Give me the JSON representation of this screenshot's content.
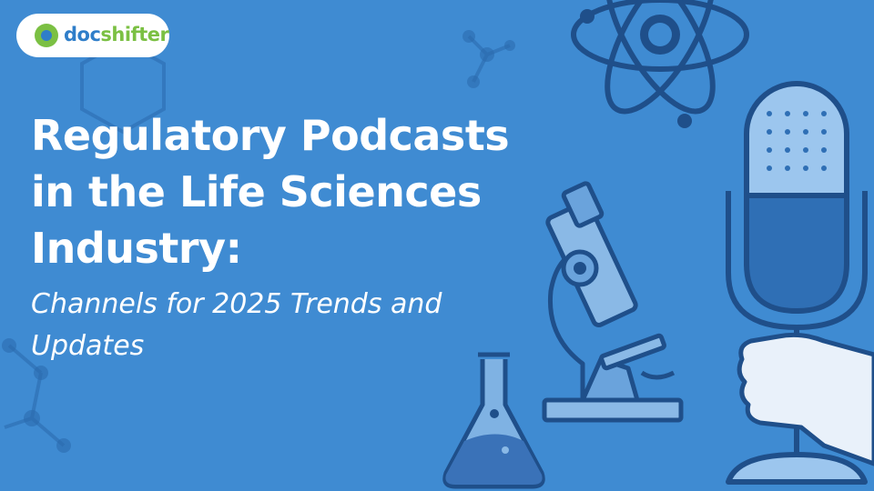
{
  "logo": {
    "part1": "doc",
    "part2": "shifter"
  },
  "title_lines": [
    "Regulatory Podcasts",
    "in the Life Sciences",
    "Industry:"
  ],
  "subtitle_lines": [
    "Channels for 2025 Trends and",
    "Updates"
  ]
}
